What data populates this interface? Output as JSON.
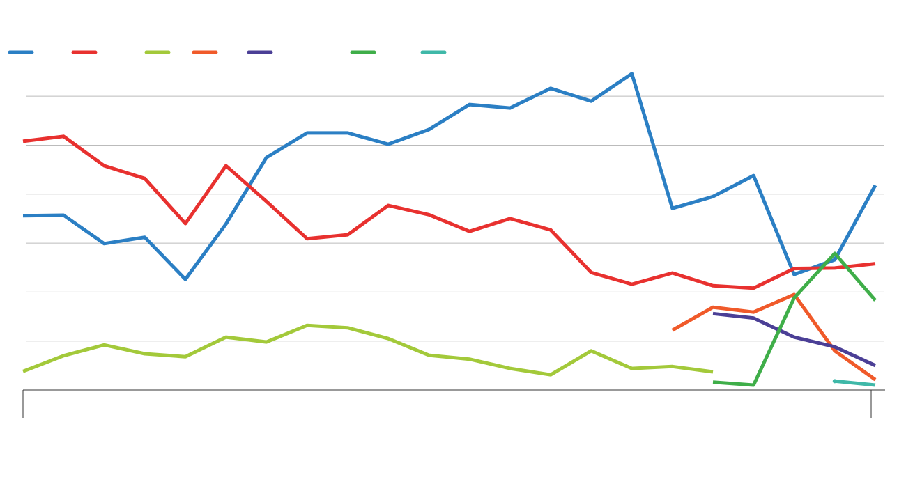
{
  "chart_data": {
    "type": "line",
    "categories": [
      null,
      null,
      null,
      null,
      null,
      null,
      null,
      null,
      null,
      null,
      null,
      null,
      null,
      null,
      null,
      null,
      null,
      null,
      null,
      null,
      null,
      null
    ],
    "ylim": [
      0,
      66
    ],
    "yticks": [
      10,
      20,
      30,
      40,
      50,
      60
    ],
    "grid": true,
    "series": [
      {
        "color": "#2b7fc4",
        "values": [
          35.6,
          35.7,
          29.9,
          31.2,
          22.6,
          33.9,
          47.5,
          52.5,
          52.5,
          50.2,
          53.2,
          58.3,
          57.6,
          61.6,
          59.0,
          64.6,
          37.1,
          39.5,
          43.8,
          23.6,
          26.6,
          41.8
        ]
      },
      {
        "color": "#e8312f",
        "values": [
          50.8,
          51.8,
          45.8,
          43.2,
          34.0,
          45.8,
          38.5,
          30.9,
          31.7,
          37.7,
          35.8,
          32.4,
          35.0,
          32.7,
          24.0,
          21.6,
          23.9,
          21.3,
          20.8,
          24.8,
          24.9,
          25.8
        ]
      },
      {
        "color": "#a3c93a",
        "values": [
          3.8,
          7.0,
          9.2,
          7.4,
          6.8,
          10.8,
          9.8,
          13.2,
          12.7,
          10.5,
          7.1,
          6.3,
          4.4,
          3.1,
          8.0,
          4.4,
          4.8,
          3.7,
          null,
          null,
          null,
          null
        ]
      },
      {
        "color": "#f05a2a",
        "values": [
          null,
          null,
          null,
          null,
          null,
          null,
          null,
          null,
          null,
          null,
          null,
          null,
          null,
          null,
          null,
          null,
          12.2,
          16.9,
          15.9,
          19.5,
          8.0,
          2.1
        ]
      },
      {
        "color": "#4b3f96",
        "values": [
          null,
          null,
          null,
          null,
          null,
          null,
          null,
          null,
          null,
          null,
          null,
          null,
          null,
          null,
          null,
          null,
          null,
          15.6,
          14.7,
          10.8,
          8.8,
          5.0
        ]
      },
      {
        "color": "#3fae49",
        "values": [
          null,
          null,
          null,
          null,
          null,
          null,
          null,
          null,
          null,
          null,
          null,
          null,
          null,
          null,
          null,
          null,
          null,
          1.6,
          1.0,
          18.8,
          27.9,
          18.3
        ]
      },
      {
        "color": "#3fb8a8",
        "values": [
          null,
          null,
          null,
          null,
          null,
          null,
          null,
          null,
          null,
          null,
          null,
          null,
          null,
          null,
          null,
          null,
          null,
          null,
          null,
          null,
          1.8,
          1.0
        ]
      }
    ]
  }
}
